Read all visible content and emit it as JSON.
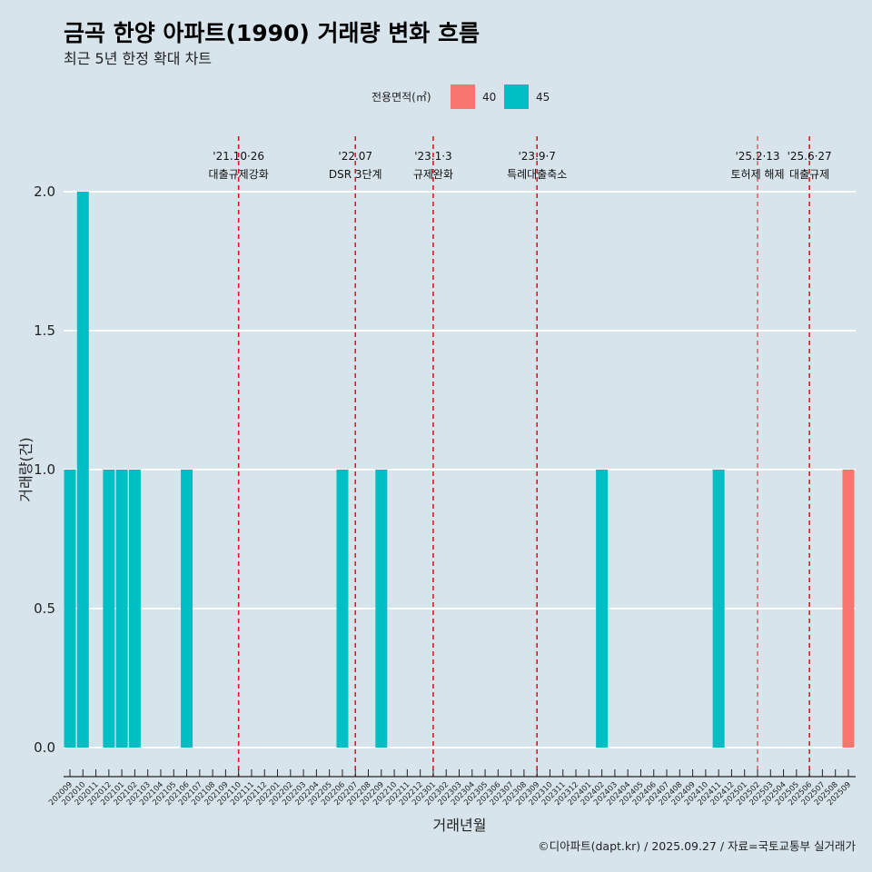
{
  "chart_data": {
    "type": "bar",
    "title": "금곡 한양 아파트(1990) 거래량 변화 흐름",
    "subtitle": "최근 5년 한정 확대 차트",
    "xlabel": "거래년월",
    "ylabel": "거래량(건)",
    "ylim": [
      0,
      2.0
    ],
    "yticks": [
      "0.0",
      "0.5",
      "1.0",
      "1.5",
      "2.0"
    ],
    "grid": true,
    "legend": {
      "title": "전용면적(㎡)",
      "placement": "top"
    },
    "categories": [
      "202009",
      "202010",
      "202011",
      "202012",
      "202101",
      "202102",
      "202103",
      "202104",
      "202105",
      "202106",
      "202107",
      "202108",
      "202109",
      "202110",
      "202111",
      "202112",
      "202201",
      "202202",
      "202203",
      "202204",
      "202205",
      "202206",
      "202207",
      "202208",
      "202209",
      "202210",
      "202211",
      "202212",
      "202301",
      "202302",
      "202303",
      "202304",
      "202305",
      "202306",
      "202307",
      "202308",
      "202309",
      "202310",
      "202311",
      "202312",
      "202401",
      "202402",
      "202403",
      "202404",
      "202405",
      "202406",
      "202407",
      "202408",
      "202409",
      "202410",
      "202411",
      "202412",
      "202501",
      "202502",
      "202503",
      "202504",
      "202505",
      "202506",
      "202507",
      "202508",
      "202509"
    ],
    "series": [
      {
        "name": "40",
        "color": "#f8766d",
        "points": [
          {
            "x": "202509",
            "y": 1
          }
        ]
      },
      {
        "name": "45",
        "color": "#00bfc4",
        "points": [
          {
            "x": "202009",
            "y": 1
          },
          {
            "x": "202010",
            "y": 2
          },
          {
            "x": "202012",
            "y": 1
          },
          {
            "x": "202101",
            "y": 1
          },
          {
            "x": "202102",
            "y": 1
          },
          {
            "x": "202106",
            "y": 1
          },
          {
            "x": "202206",
            "y": 1
          },
          {
            "x": "202209",
            "y": 1
          },
          {
            "x": "202402",
            "y": 1
          },
          {
            "x": "202411",
            "y": 1
          }
        ]
      }
    ],
    "annotations": [
      {
        "x": "202110",
        "date": "'21.10·26",
        "label": "대출규제강화"
      },
      {
        "x": "202207",
        "date": "'22.07",
        "label": "DSR 3단계"
      },
      {
        "x": "202301",
        "date": "'23.1·3",
        "label": "규제완화"
      },
      {
        "x": "202309",
        "date": "'23.9·7",
        "label": "특례대출축소"
      },
      {
        "x": "202502",
        "date": "'25.2·13",
        "label": "토허제 해제",
        "thin": true
      },
      {
        "x": "202506",
        "date": "'25.6·27",
        "label": "대출규제"
      }
    ],
    "caption": "©디아파트(dapt.kr) / 2025.09.27 / 자료=국토교통부 실거래가"
  }
}
